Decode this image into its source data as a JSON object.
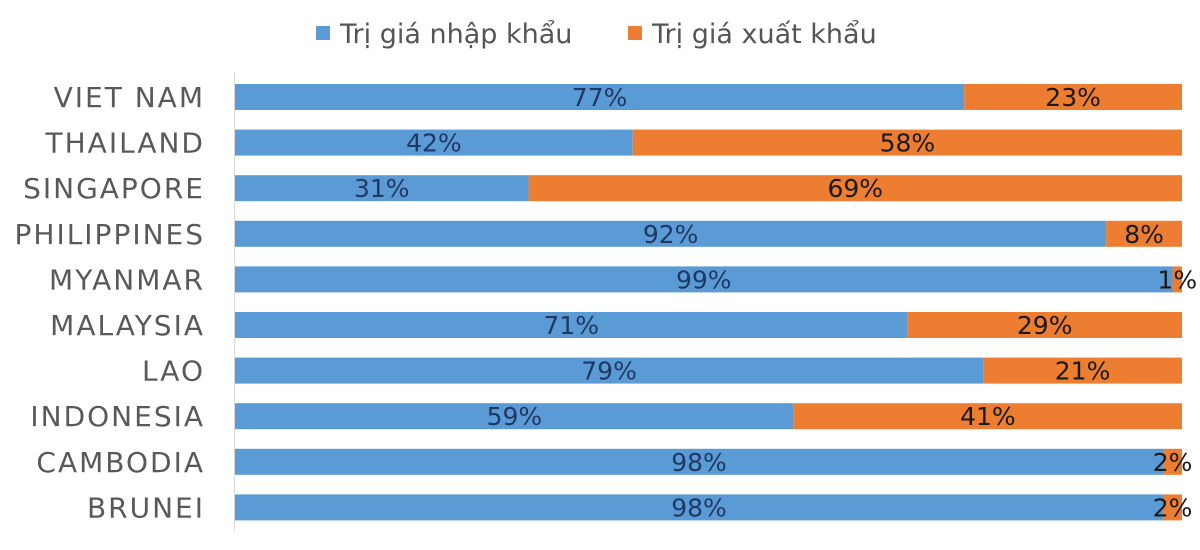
{
  "chart_data": {
    "type": "bar",
    "orientation": "horizontal",
    "stacked": true,
    "percent": true,
    "categories": [
      "VIET NAM",
      "THAILAND",
      "SINGAPORE",
      "PHILIPPINES",
      "MYANMAR",
      "MALAYSIA",
      "LAO",
      "INDONESIA",
      "CAMBODIA",
      "BRUNEI"
    ],
    "series": [
      {
        "name": "Trị giá nhập khẩu",
        "color": "#5B9BD5",
        "label_color": "#203864",
        "values": [
          77,
          42,
          31,
          92,
          99,
          71,
          79,
          59,
          98,
          98
        ],
        "labels": [
          "77%",
          "42%",
          "31%",
          "92%",
          "99%",
          "71%",
          "79%",
          "59%",
          "98%",
          "98%"
        ]
      },
      {
        "name": "Trị giá xuất khẩu",
        "color": "#ED7D31",
        "label_color": "#1a1a1a",
        "values": [
          23,
          58,
          69,
          8,
          1,
          29,
          21,
          41,
          2,
          2
        ],
        "labels": [
          "23%",
          "58%",
          "69%",
          "8%",
          "1%",
          "29%",
          "21%",
          "41%",
          "2%",
          "2%"
        ]
      }
    ],
    "xlim": [
      0,
      100
    ],
    "legend_position": "top",
    "grid": false
  }
}
